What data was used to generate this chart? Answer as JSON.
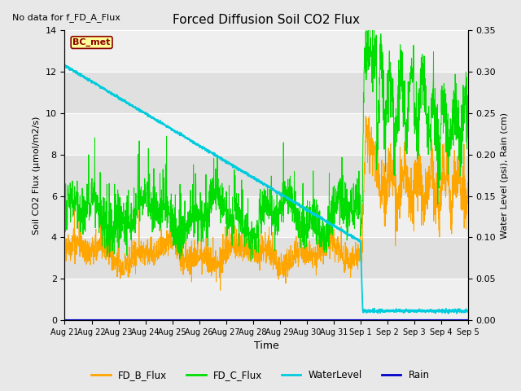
{
  "title": "Forced Diffusion Soil CO2 Flux",
  "no_data_text": "No data for f_FD_A_Flux",
  "xlabel": "Time",
  "ylabel_left": "Soil CO2 Flux (μmol/m2/s)",
  "ylabel_right": "Water Level (psi), Rain (cm)",
  "ylim_left": [
    0,
    14
  ],
  "ylim_right": [
    0,
    0.35
  ],
  "yticks_left": [
    0,
    2,
    4,
    6,
    8,
    10,
    12,
    14
  ],
  "yticks_right": [
    0.0,
    0.05,
    0.1,
    0.15,
    0.2,
    0.25,
    0.3,
    0.35
  ],
  "fig_bg": "#e8e8e8",
  "plot_bg": "#e0e0e0",
  "fd_b_color": "#FFA500",
  "fd_c_color": "#00DD00",
  "water_color": "#00CCDD",
  "rain_color": "#0000CC",
  "bc_met_text_color": "#8B0000",
  "bc_met_bg": "#FFFF99",
  "seed": 12345,
  "n_pts": 2160,
  "n_days": 15
}
